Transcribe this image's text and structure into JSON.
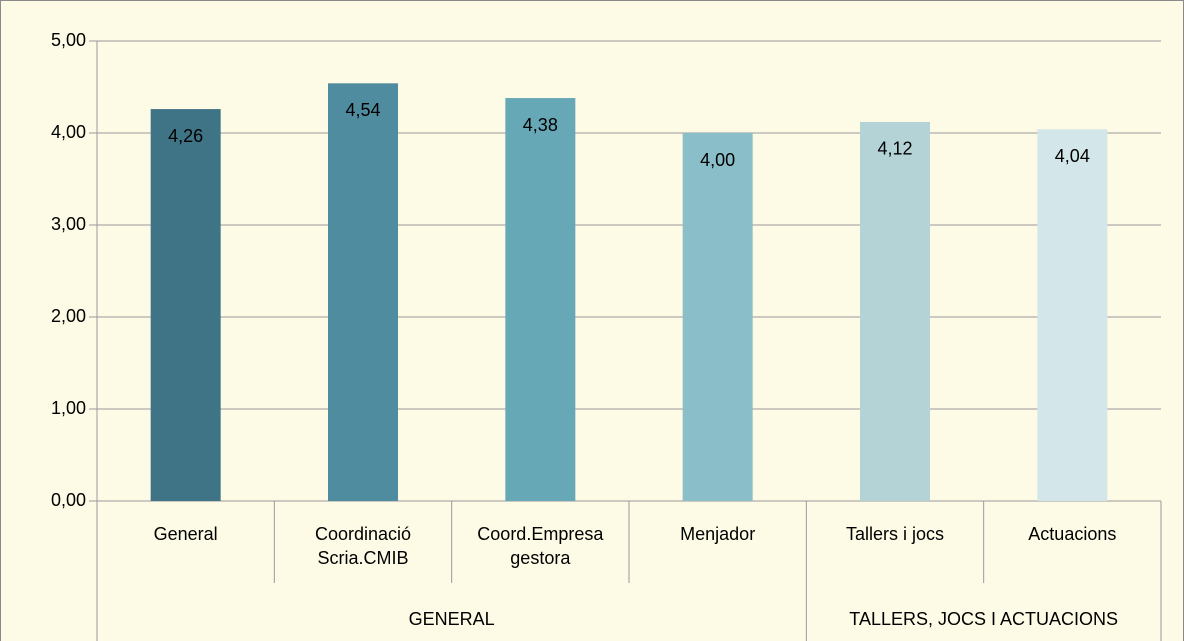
{
  "chart_data": {
    "type": "bar",
    "categories": [
      "General",
      "Coordinació\nScria.CMIB",
      "Coord.Empresa\ngestora",
      "Menjador",
      "Tallers i jocs",
      "Actuacions"
    ],
    "values": [
      4.26,
      4.54,
      4.38,
      4.0,
      4.12,
      4.04
    ],
    "value_labels": [
      "4,26",
      "4,54",
      "4,38",
      "4,00",
      "4,12",
      "4,04"
    ],
    "colors": [
      "#3f7386",
      "#508c9f",
      "#67a8b7",
      "#8abec8",
      "#b3d3d7",
      "#d3e6e9"
    ],
    "groups": [
      {
        "label": "GENERAL",
        "span": 4
      },
      {
        "label": "TALLERS, JOCS I ACTUACIONS",
        "span": 2
      }
    ],
    "ylim": [
      0,
      5
    ],
    "yticks": [
      {
        "value": 0,
        "label": "0,00"
      },
      {
        "value": 1,
        "label": "1,00"
      },
      {
        "value": 2,
        "label": "2,00"
      },
      {
        "value": 3,
        "label": "3,00"
      },
      {
        "value": 4,
        "label": "4,00"
      },
      {
        "value": 5,
        "label": "5,00"
      }
    ],
    "grid": true
  }
}
